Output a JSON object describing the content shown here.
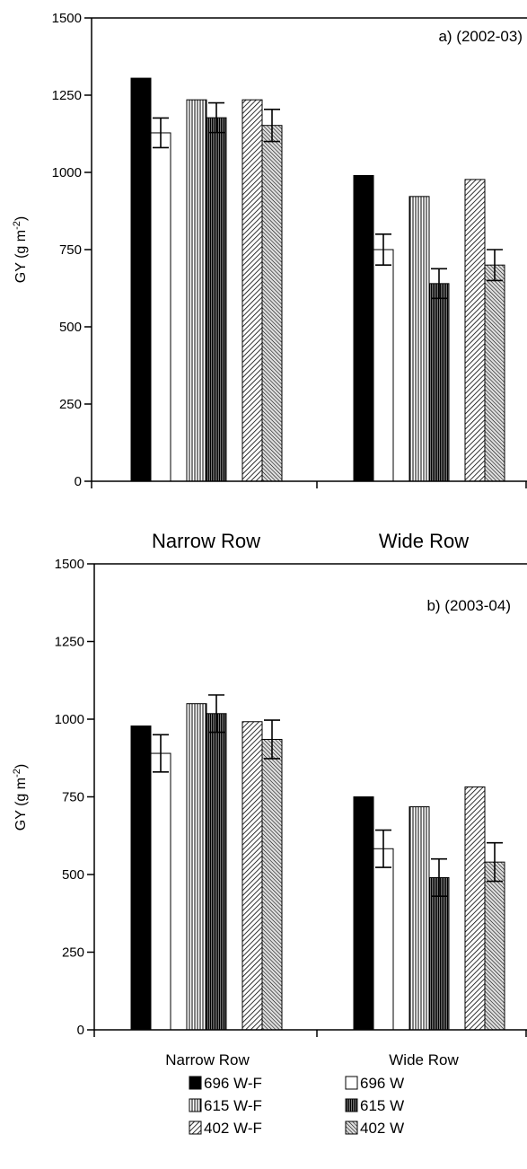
{
  "legend": [
    {
      "label": "696 W-F",
      "fill": "black"
    },
    {
      "label": "696 W",
      "fill": "white"
    },
    {
      "label": "615 W-F",
      "fill": "vlines"
    },
    {
      "label": "615 W",
      "fill": "vdense"
    },
    {
      "label": "402 W-F",
      "fill": "diag"
    },
    {
      "label": "402 W",
      "fill": "diagdense"
    }
  ],
  "chart_data": [
    {
      "type": "bar",
      "panel_label": "a) (2002-03)",
      "ylabel_main": "GY (g m",
      "ylabel_sup": "-2",
      "ylabel_end": ")",
      "ylim": [
        0,
        1500
      ],
      "yticks": [
        "0",
        "250",
        "500",
        "750",
        "1000",
        "1250",
        "1500"
      ],
      "categories": [
        "Narrow Row",
        "Wide Row"
      ],
      "series": [
        {
          "name": "696 W-F",
          "values": [
            1305,
            990
          ],
          "errors": [
            null,
            null
          ]
        },
        {
          "name": "696 W",
          "values": [
            1128,
            750
          ],
          "errors": [
            48,
            50
          ]
        },
        {
          "name": "615 W-F",
          "values": [
            1235,
            922
          ],
          "errors": [
            null,
            null
          ]
        },
        {
          "name": "615 W",
          "values": [
            1177,
            640
          ],
          "errors": [
            48,
            48
          ]
        },
        {
          "name": "402 W-F",
          "values": [
            1235,
            977
          ],
          "errors": [
            null,
            null
          ]
        },
        {
          "name": "402 W",
          "values": [
            1152,
            700
          ],
          "errors": [
            52,
            50
          ]
        }
      ]
    },
    {
      "type": "bar",
      "panel_label": "b) (2003-04)",
      "ylabel_main": "GY (g m",
      "ylabel_sup": "-2",
      "ylabel_end": ")",
      "ylim": [
        0,
        1500
      ],
      "yticks": [
        "0",
        "250",
        "500",
        "750",
        "1000",
        "1250",
        "1500"
      ],
      "categories": [
        "Narrow Row",
        "Wide Row"
      ],
      "series": [
        {
          "name": "696 W-F",
          "values": [
            978,
            750
          ],
          "errors": [
            null,
            null
          ]
        },
        {
          "name": "696 W",
          "values": [
            890,
            583
          ],
          "errors": [
            60,
            60
          ]
        },
        {
          "name": "615 W-F",
          "values": [
            1050,
            718
          ],
          "errors": [
            null,
            null
          ]
        },
        {
          "name": "615 W",
          "values": [
            1018,
            490
          ],
          "errors": [
            60,
            60
          ]
        },
        {
          "name": "402 W-F",
          "values": [
            992,
            782
          ],
          "errors": [
            null,
            null
          ]
        },
        {
          "name": "402 W",
          "values": [
            935,
            540
          ],
          "errors": [
            62,
            62
          ]
        }
      ]
    }
  ]
}
